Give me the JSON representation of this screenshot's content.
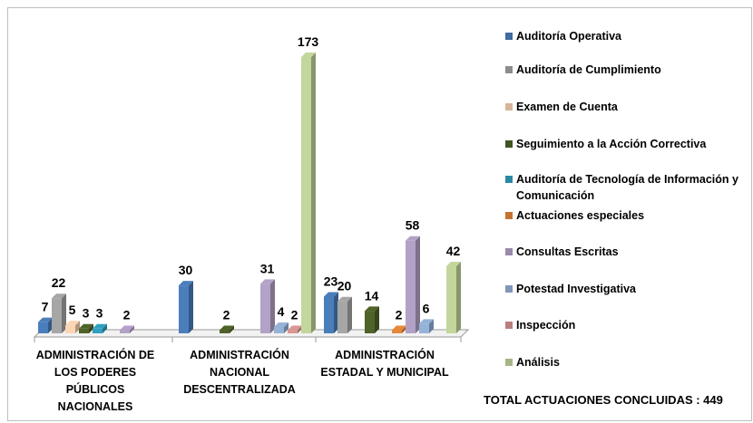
{
  "chart_data": {
    "type": "bar3d",
    "categories": [
      "ADMINISTRACIÓN DE LOS PODERES PÚBLICOS NACIONALES",
      "ADMINISTRACIÓN NACIONAL DESCENTRALIZADA",
      "ADMINISTRACIÓN ESTADAL Y MUNICIPAL"
    ],
    "series": [
      {
        "name": "Auditoría Operativa",
        "color": "#4a7ebb",
        "values": [
          7,
          30,
          23
        ]
      },
      {
        "name": "Auditoría de Cumplimiento",
        "color": "#a6a6a6",
        "values": [
          22,
          null,
          20
        ]
      },
      {
        "name": "Examen de Cuenta",
        "color": "#fcd5b5",
        "values": [
          5,
          null,
          null
        ]
      },
      {
        "name": "Seguimiento a la Acción Correctiva",
        "color": "#4f6228",
        "values": [
          3,
          2,
          14
        ]
      },
      {
        "name": "Auditoría de Tecnología de Información y Comunicación",
        "color": "#31a0c0",
        "values": [
          3,
          null,
          null
        ]
      },
      {
        "name": "Actuaciones especiales",
        "color": "#e6883a",
        "values": [
          null,
          null,
          2
        ]
      },
      {
        "name": "Consultas Escritas",
        "color": "#b3a2c7",
        "values": [
          2,
          31,
          58
        ]
      },
      {
        "name": "Potestad Investigativa",
        "color": "#95b3d7",
        "values": [
          null,
          4,
          6
        ]
      },
      {
        "name": "Inspección",
        "color": "#d99694",
        "values": [
          null,
          2,
          null
        ]
      },
      {
        "name": "Análisis",
        "color": "#c3d69b",
        "values": [
          null,
          173,
          42
        ]
      }
    ],
    "annotation": "TOTAL ACTUACIONES CONCLUIDAS : 449"
  }
}
